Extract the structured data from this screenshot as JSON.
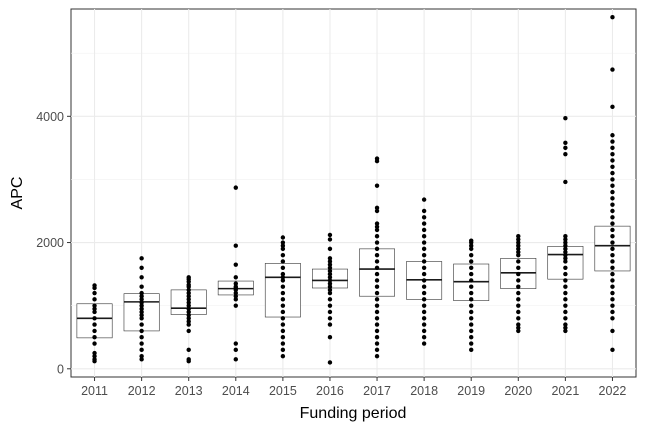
{
  "chart_data": {
    "type": "box",
    "title": "",
    "xlabel": "Funding period",
    "ylabel": "APC",
    "grid": true,
    "legend": "none",
    "ylim": [
      -130,
      5700
    ],
    "yticks": [
      0,
      2000,
      4000
    ],
    "categories": [
      "2011",
      "2012",
      "2013",
      "2014",
      "2015",
      "2016",
      "2017",
      "2018",
      "2019",
      "2020",
      "2021",
      "2022"
    ],
    "boxes": [
      {
        "q1": 490,
        "median": 800,
        "q3": 1030
      },
      {
        "q1": 600,
        "median": 1060,
        "q3": 1190
      },
      {
        "q1": 860,
        "median": 960,
        "q3": 1250
      },
      {
        "q1": 1170,
        "median": 1270,
        "q3": 1390
      },
      {
        "q1": 820,
        "median": 1450,
        "q3": 1670
      },
      {
        "q1": 1280,
        "median": 1400,
        "q3": 1580
      },
      {
        "q1": 1150,
        "median": 1580,
        "q3": 1900
      },
      {
        "q1": 1100,
        "median": 1410,
        "q3": 1700
      },
      {
        "q1": 1080,
        "median": 1380,
        "q3": 1660
      },
      {
        "q1": 1270,
        "median": 1520,
        "q3": 1750
      },
      {
        "q1": 1420,
        "median": 1810,
        "q3": 1940
      },
      {
        "q1": 1550,
        "median": 1950,
        "q3": 2260
      }
    ],
    "points": [
      [
        1320,
        1280,
        1200,
        1100,
        1000,
        950,
        900,
        800,
        700,
        600,
        500,
        400,
        250,
        200,
        150,
        120
      ],
      [
        1750,
        1600,
        1450,
        1300,
        1200,
        1150,
        1100,
        1050,
        1000,
        950,
        900,
        850,
        800,
        700,
        600,
        500,
        400,
        300,
        200,
        150
      ],
      [
        1450,
        1420,
        1380,
        1330,
        1300,
        1250,
        1200,
        1150,
        1100,
        1050,
        1000,
        950,
        900,
        850,
        800,
        750,
        700,
        600,
        300,
        150,
        120
      ],
      [
        2870,
        1950,
        1650,
        1450,
        1350,
        1300,
        1280,
        1250,
        1200,
        1150,
        1100,
        1000,
        400,
        300,
        150
      ],
      [
        2080,
        2000,
        1950,
        1900,
        1800,
        1700,
        1600,
        1500,
        1450,
        1400,
        1300,
        1200,
        1100,
        1000,
        900,
        800,
        700,
        600,
        500,
        400,
        300,
        200
      ],
      [
        2120,
        2050,
        1900,
        1750,
        1700,
        1650,
        1600,
        1550,
        1500,
        1450,
        1400,
        1350,
        1300,
        1250,
        1200,
        1100,
        1000,
        900,
        800,
        700,
        500,
        100
      ],
      [
        3330,
        3290,
        2900,
        2550,
        2500,
        2300,
        2250,
        2200,
        2100,
        2000,
        1900,
        1800,
        1700,
        1600,
        1500,
        1400,
        1300,
        1200,
        1100,
        1000,
        900,
        800,
        700,
        600,
        500,
        400,
        300,
        200
      ],
      [
        2680,
        2500,
        2400,
        2300,
        2200,
        2100,
        2000,
        1900,
        1800,
        1700,
        1600,
        1500,
        1400,
        1300,
        1200,
        1100,
        1000,
        900,
        800,
        700,
        600,
        500,
        400
      ],
      [
        2030,
        2000,
        1950,
        1900,
        1800,
        1700,
        1600,
        1500,
        1400,
        1300,
        1200,
        1100,
        1000,
        900,
        800,
        700,
        600,
        500,
        400,
        300
      ],
      [
        2100,
        2050,
        2000,
        1950,
        1900,
        1850,
        1800,
        1700,
        1600,
        1500,
        1400,
        1300,
        1200,
        1100,
        1000,
        900,
        800,
        700,
        650,
        600
      ],
      [
        3970,
        3580,
        3500,
        3400,
        2960,
        2100,
        2050,
        2000,
        1950,
        1900,
        1850,
        1800,
        1750,
        1700,
        1600,
        1500,
        1400,
        1300,
        1200,
        1100,
        1000,
        900,
        800,
        700,
        650,
        600
      ],
      [
        5570,
        4740,
        4150,
        3700,
        3600,
        3500,
        3400,
        3300,
        3200,
        3100,
        3000,
        2900,
        2800,
        2700,
        2600,
        2500,
        2400,
        2300,
        2200,
        2100,
        2000,
        1900,
        1800,
        1700,
        1600,
        1500,
        1400,
        1300,
        1200,
        1100,
        1000,
        900,
        800,
        600,
        300
      ]
    ]
  }
}
